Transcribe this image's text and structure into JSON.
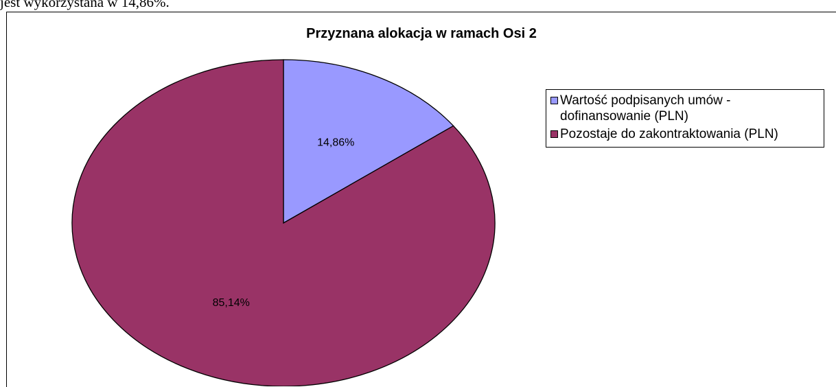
{
  "document_text": "jest wykorzystana w 14,86%.",
  "chart_data": {
    "type": "pie",
    "title": "Przyznana alokacja w ramach Osi 2",
    "categories": [
      "Wartość podpisanych umów - dofinansowanie (PLN)",
      "Pozostaje do zakontraktowania (PLN)"
    ],
    "values": [
      14.86,
      85.14
    ],
    "value_labels": [
      "14,86%",
      "85,14%"
    ],
    "colors": [
      "#9999ff",
      "#993366"
    ],
    "legend": "right"
  }
}
